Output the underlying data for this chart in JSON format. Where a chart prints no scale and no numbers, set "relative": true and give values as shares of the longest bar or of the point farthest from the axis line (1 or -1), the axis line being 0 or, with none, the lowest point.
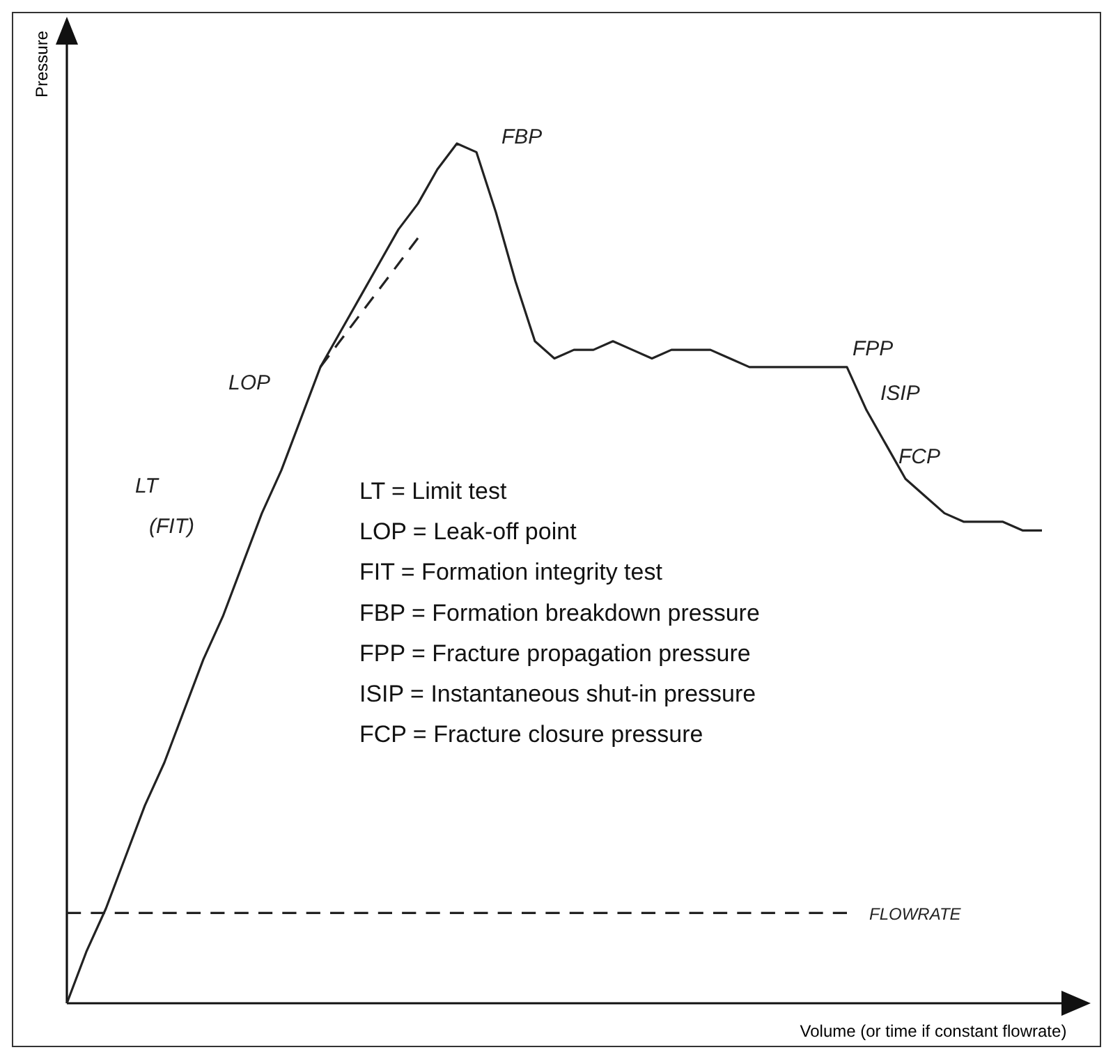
{
  "chart_data": {
    "type": "line",
    "relative": true,
    "xlabel": "Volume (or time if constant flowrate)",
    "ylabel": "Pressure",
    "categories": [
      null,
      null,
      null,
      null,
      null,
      null,
      null,
      null,
      null,
      null,
      null,
      null,
      null,
      null,
      null,
      null,
      null,
      null,
      null,
      null,
      null,
      null,
      null,
      null,
      null,
      null,
      null,
      null,
      null,
      null,
      null,
      null,
      null,
      null,
      null,
      null,
      null,
      null,
      null,
      null,
      null,
      null,
      null,
      null,
      null,
      null,
      null,
      null,
      null,
      null,
      null
    ],
    "series": [
      {
        "color": "#222222",
        "line_style": "solid",
        "values": [
          0,
          0.06,
          0.11,
          0.17,
          0.23,
          0.28,
          0.34,
          0.4,
          0.45,
          0.51,
          0.57,
          0.62,
          0.68,
          0.74,
          0.78,
          0.82,
          0.86,
          0.9,
          0.93,
          0.97,
          1,
          0.99,
          0.92,
          0.84,
          0.77,
          0.75,
          0.76,
          0.76,
          0.77,
          0.76,
          0.75,
          0.76,
          0.76,
          0.76,
          0.75,
          0.74,
          0.74,
          0.74,
          0.74,
          0.74,
          0.74,
          0.69,
          0.65,
          0.61,
          0.59,
          0.57,
          0.56,
          0.56,
          0.56,
          0.55,
          0.55
        ]
      },
      {
        "color": "#222222",
        "line_style": "dashed",
        "values": [
          null,
          null,
          null,
          null,
          null,
          null,
          null,
          null,
          null,
          null,
          null,
          null,
          null,
          0.74,
          0.77,
          0.8,
          0.83,
          0.86,
          0.89,
          null,
          null,
          null,
          null,
          null,
          null,
          null,
          null,
          null,
          null,
          null,
          null,
          null,
          null,
          null,
          null,
          null,
          null,
          null,
          null,
          null,
          null,
          null,
          null,
          null,
          null,
          null,
          null,
          null,
          null,
          null,
          null
        ]
      },
      {
        "name": "FLOWRATE",
        "color": "#222222",
        "line_style": "dashed",
        "values": [
          0.105,
          0.105,
          0.105,
          0.105,
          0.105,
          0.105,
          0.105,
          0.105,
          0.105,
          0.105,
          0.105,
          0.105,
          0.105,
          0.105,
          0.105,
          0.105,
          0.105,
          0.105,
          0.105,
          0.105,
          0.105,
          0.105,
          0.105,
          0.105,
          0.105,
          0.105,
          0.105,
          0.105,
          0.105,
          0.105,
          0.105,
          0.105,
          0.105,
          0.105,
          0.105,
          0.105,
          0.105,
          0.105,
          0.105,
          0.105,
          0.105,
          null,
          null,
          null,
          null,
          null,
          null,
          null,
          null,
          null,
          null
        ]
      }
    ],
    "annotations": [
      "FBP",
      "LOP",
      "LT",
      "(FIT)",
      "FPP",
      "ISIP",
      "FCP",
      "LT = Limit test",
      "LOP = Leak-off point",
      "FIT = Formation integrity test",
      "FBP = Formation breakdown pressure",
      "FPP = Fracture propagation pressure",
      "ISIP = Instantaneous shut-in pressure",
      "FCP = Fracture closure pressure"
    ]
  }
}
